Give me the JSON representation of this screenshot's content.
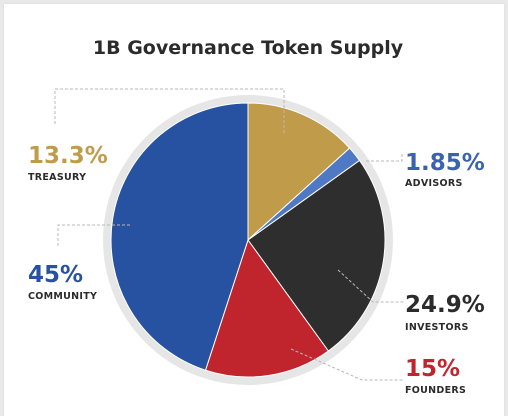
{
  "chart_data": {
    "type": "pie",
    "title": "1B Governance Token Supply",
    "slices": [
      {
        "label": "TREASURY",
        "value": 13.3,
        "value_label": "13.3%",
        "color": "#c09b4a",
        "pct_color": "#c09b4a"
      },
      {
        "label": "ADVISORS",
        "value": 1.85,
        "value_label": "1.85%",
        "color": "#4f79c4",
        "pct_color": "#3a63ad"
      },
      {
        "label": "INVESTORS",
        "value": 24.9,
        "value_label": "24.9%",
        "color": "#2e2e2e",
        "pct_color": "#2b2b2b"
      },
      {
        "label": "FOUNDERS",
        "value": 15,
        "value_label": "15%",
        "color": "#c0252e",
        "pct_color": "#c0252e"
      },
      {
        "label": "COMMUNITY",
        "value": 45,
        "value_label": "45%",
        "color": "#2751a1",
        "pct_color": "#2751a1"
      }
    ],
    "start_position": "12 o'clock",
    "direction": "clockwise"
  }
}
